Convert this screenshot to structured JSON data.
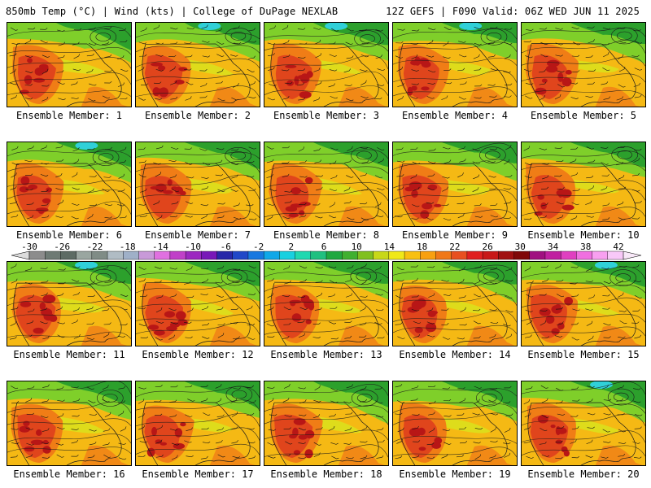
{
  "header": {
    "left_title": "850mb Temp (°C) | Wind (kts) | College of DuPage NEXLAB",
    "right_title": "12Z GEFS | F090 Valid: 06Z WED JUN 11 2025"
  },
  "panels": [
    {
      "caption": "Ensemble Member: 1"
    },
    {
      "caption": "Ensemble Member: 2"
    },
    {
      "caption": "Ensemble Member: 3"
    },
    {
      "caption": "Ensemble Member: 4"
    },
    {
      "caption": "Ensemble Member: 5"
    },
    {
      "caption": "Ensemble Member: 6"
    },
    {
      "caption": "Ensemble Member: 7"
    },
    {
      "caption": "Ensemble Member: 8"
    },
    {
      "caption": "Ensemble Member: 9"
    },
    {
      "caption": "Ensemble Member: 10"
    },
    {
      "caption": "Ensemble Member: 11"
    },
    {
      "caption": "Ensemble Member: 12"
    },
    {
      "caption": "Ensemble Member: 13"
    },
    {
      "caption": "Ensemble Member: 14"
    },
    {
      "caption": "Ensemble Member: 15"
    },
    {
      "caption": "Ensemble Member: 16"
    },
    {
      "caption": "Ensemble Member: 17"
    },
    {
      "caption": "Ensemble Member: 18"
    },
    {
      "caption": "Ensemble Member: 19"
    },
    {
      "caption": "Ensemble Member: 20"
    }
  ],
  "colorbar": {
    "tick_labels": [
      "-30",
      "-26",
      "-22",
      "-18",
      "-14",
      "-10",
      "-6",
      "-2",
      "2",
      "6",
      "10",
      "14",
      "18",
      "22",
      "26",
      "30",
      "34",
      "38",
      "42"
    ],
    "colors": [
      "#8c8c8c",
      "#6e7a74",
      "#5d6b64",
      "#9aa6a0",
      "#808c86",
      "#b0bcc4",
      "#9fb0c8",
      "#c89ad8",
      "#e070e0",
      "#c040c8",
      "#9c28c0",
      "#7818b8",
      "#2828a8",
      "#2048c8",
      "#1878e0",
      "#10a8e8",
      "#18d0e0",
      "#20d8b0",
      "#20c080",
      "#20a840",
      "#40b030",
      "#80c020",
      "#c8d818",
      "#f0e818",
      "#f8c010",
      "#f8a010",
      "#f07818",
      "#e85020",
      "#e02020",
      "#c81818",
      "#a01010",
      "#800808",
      "#a01080",
      "#c020a0",
      "#e040c0",
      "#f070e0",
      "#f8a0f0",
      "#f8c8f8"
    ]
  },
  "map_colors": {
    "cold": "#2ca02c",
    "cool": "#7fcf2a",
    "mild": "#d9e21c",
    "warm": "#f5b914",
    "hot": "#f07d16",
    "very_hot": "#e0451c",
    "extreme": "#b81616",
    "arctic": "#30d0d8",
    "contour": "#1a1a1a"
  }
}
